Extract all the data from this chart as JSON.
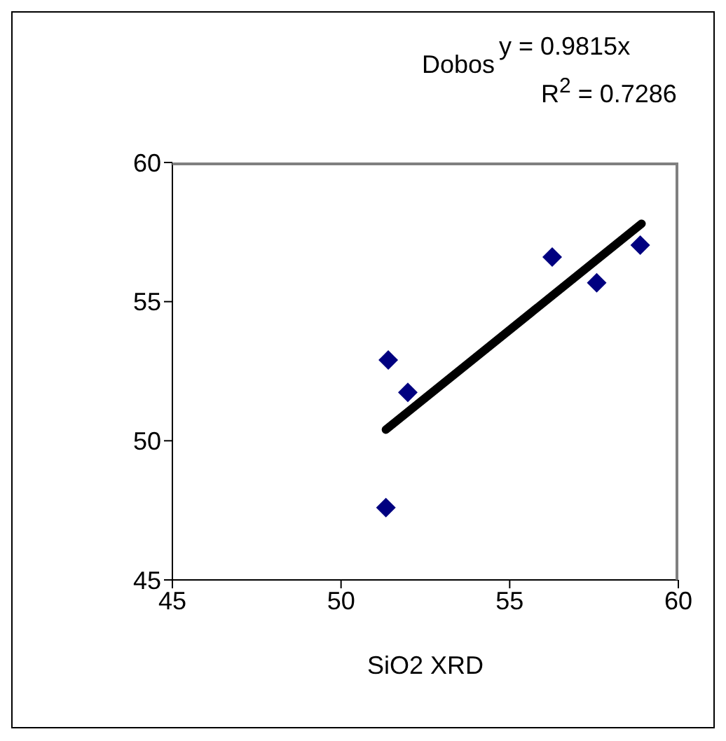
{
  "chart_data": {
    "type": "scatter",
    "title": "Dobos",
    "xlabel": "SiO2 XRD",
    "annotations": [
      "y = 0.9815x",
      "R$^{2}$ = 0.7286"
    ],
    "xlim": [
      45,
      60
    ],
    "xticks": [
      45,
      50,
      55,
      60
    ],
    "ylim": [
      45,
      60
    ],
    "yticks": [
      45,
      50,
      55,
      60
    ],
    "grid": false,
    "legend": false,
    "series": [
      {
        "marker": "diamond",
        "color": "#000080",
        "x": [
          51.4,
          51.98,
          51.33,
          56.26,
          57.58,
          58.87
        ],
        "values": [
          52.9,
          51.74,
          47.6,
          56.6,
          55.68,
          57.03
        ]
      },
      {
        "type": "line",
        "marker": "none",
        "color": "#000000",
        "x": [
          51.33,
          58.91
        ],
        "values": [
          50.4,
          57.8
        ]
      }
    ]
  }
}
